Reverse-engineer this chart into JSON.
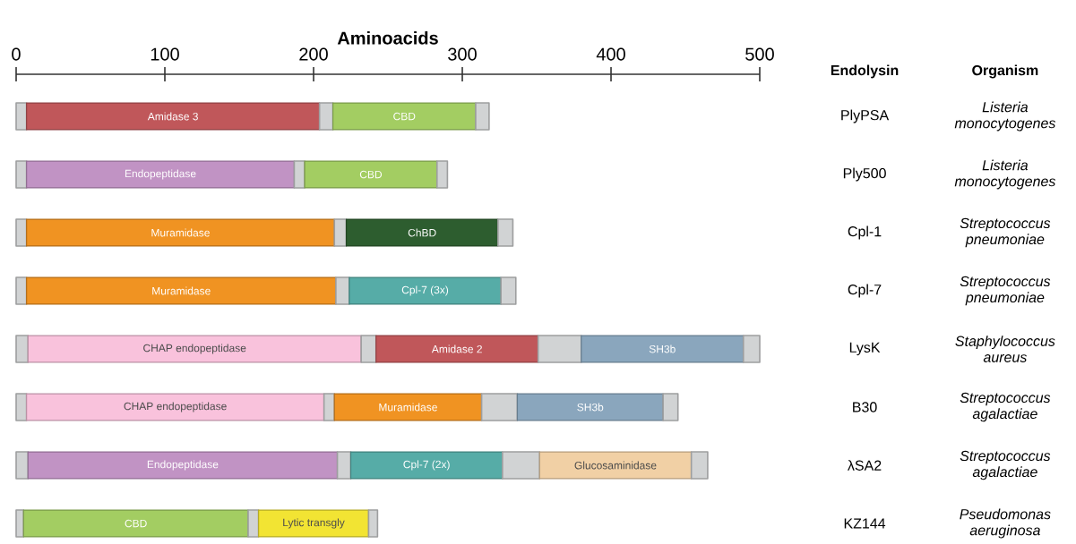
{
  "chart_data": {
    "type": "bar",
    "orientation": "horizontal",
    "stacked": true,
    "xlabel": "Aminoacids",
    "annotations": [
      "Endolysin",
      "Organism"
    ],
    "categories": [
      "PlyPSA",
      "Ply500",
      "Cpl-1",
      "Cpl-7",
      "LysK",
      "B30",
      "λSA2",
      "KZ144"
    ],
    "y2_categories": [
      "Listeria monocytogenes",
      "Listeria monocytogenes",
      "Streptococcus pneumoniae",
      "Streptococcus pneumoniae",
      "Staphylococcus aureus",
      "Streptococcus agalactiae",
      "Streptococcus agalactiae",
      "Pseudomonas aeruginosa"
    ],
    "xlim": [
      0,
      500
    ],
    "xticks": [
      0,
      100,
      200,
      300,
      400,
      500
    ],
    "series": [
      {
        "color": "#d1d3d4",
        "values": [
          7,
          7,
          7,
          7,
          8,
          7,
          8,
          5
        ]
      },
      {
        "colors": [
          "#c0575a",
          "#c193c4",
          "#f09322",
          "#f09322",
          "#f9c2dc",
          "#f9c2dc",
          "#c193c4",
          "#a3cd62"
        ],
        "values": [
          197,
          180,
          207,
          208,
          224,
          200,
          208,
          151
        ],
        "value_labels": [
          "Amidase 3",
          "Endopeptidase",
          "Muramidase",
          "Muramidase",
          "CHAP endopeptidase",
          "CHAP endopeptidase",
          "Endopeptidase",
          "CBD"
        ]
      },
      {
        "color": "#d1d3d4",
        "values": [
          9,
          7,
          8,
          9,
          10,
          7,
          9,
          7
        ]
      },
      {
        "colors": [
          "#a3cd62",
          "#a3cd62",
          "#2d5d2f",
          "#56aca7",
          "#c0575a",
          "#f09322",
          "#56aca7",
          "#f2e433"
        ],
        "values": [
          96,
          89,
          102,
          102,
          109,
          99,
          102,
          74
        ],
        "value_labels": [
          "CBD",
          "CBD",
          "ChBD",
          "Cpl-7 (3x)",
          "Amidase 2",
          "Muramidase",
          "Cpl-7 (2x)",
          "Lytic transgly"
        ]
      },
      {
        "color": "#d1d3d4",
        "values": [
          null,
          null,
          null,
          null,
          29,
          24,
          25,
          null
        ]
      },
      {
        "colors": [
          null,
          null,
          null,
          null,
          "#8aa6bd",
          "#8aa6bd",
          "#f1d0a5",
          null
        ],
        "values": [
          null,
          null,
          null,
          null,
          109,
          98,
          102,
          null
        ],
        "value_labels": [
          null,
          null,
          null,
          null,
          "SH3b",
          "SH3b",
          "Glucosaminidase",
          null
        ]
      },
      {
        "color": "#d1d3d4",
        "values": [
          9,
          7,
          10,
          10,
          11,
          10,
          11,
          6
        ]
      }
    ]
  }
}
